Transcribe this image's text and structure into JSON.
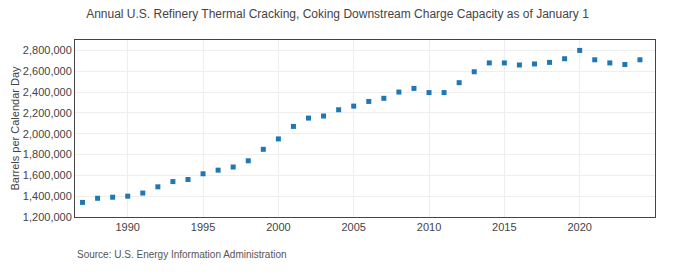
{
  "chart_data": {
    "type": "scatter",
    "title": "Annual U.S. Refinery Thermal Cracking, Coking Downstream Charge Capacity as of January 1",
    "ylabel": "Barrels per Calendar Day",
    "annotations": [
      "Source: U.S. Energy Information Administration"
    ],
    "marker": "square",
    "grid": true,
    "x": [
      1987,
      1988,
      1989,
      1990,
      1991,
      1992,
      1993,
      1994,
      1995,
      1996,
      1997,
      1998,
      1999,
      2000,
      2001,
      2002,
      2003,
      2004,
      2005,
      2006,
      2007,
      2008,
      2009,
      2010,
      2011,
      2012,
      2013,
      2014,
      2015,
      2016,
      2017,
      2018,
      2019,
      2020,
      2021,
      2022,
      2023,
      2024
    ],
    "values": [
      1340000,
      1380000,
      1390000,
      1400000,
      1430000,
      1490000,
      1540000,
      1560000,
      1615000,
      1650000,
      1680000,
      1740000,
      1850000,
      1950000,
      2070000,
      2150000,
      2170000,
      2230000,
      2265000,
      2310000,
      2340000,
      2400000,
      2435000,
      2395000,
      2395000,
      2490000,
      2595000,
      2680000,
      2680000,
      2660000,
      2670000,
      2685000,
      2720000,
      2800000,
      2710000,
      2680000,
      2665000,
      2710000
    ],
    "xlim": [
      1986.5,
      2025
    ],
    "ylim": [
      1200000,
      2900000
    ],
    "xticks": [
      1990,
      1995,
      2000,
      2005,
      2010,
      2015,
      2020
    ],
    "yticks": [
      {
        "value": 1200000,
        "label": "1,200,000"
      },
      {
        "value": 1400000,
        "label": "1,400,000"
      },
      {
        "value": 1600000,
        "label": "1,600,000"
      },
      {
        "value": 1800000,
        "label": "1,800,000"
      },
      {
        "value": 2000000,
        "label": "2,000,000"
      },
      {
        "value": 2200000,
        "label": "2,200,000"
      },
      {
        "value": 2400000,
        "label": "2,400,000"
      },
      {
        "value": 2600000,
        "label": "2,600,000"
      },
      {
        "value": 2800000,
        "label": "2,800,000"
      }
    ]
  }
}
